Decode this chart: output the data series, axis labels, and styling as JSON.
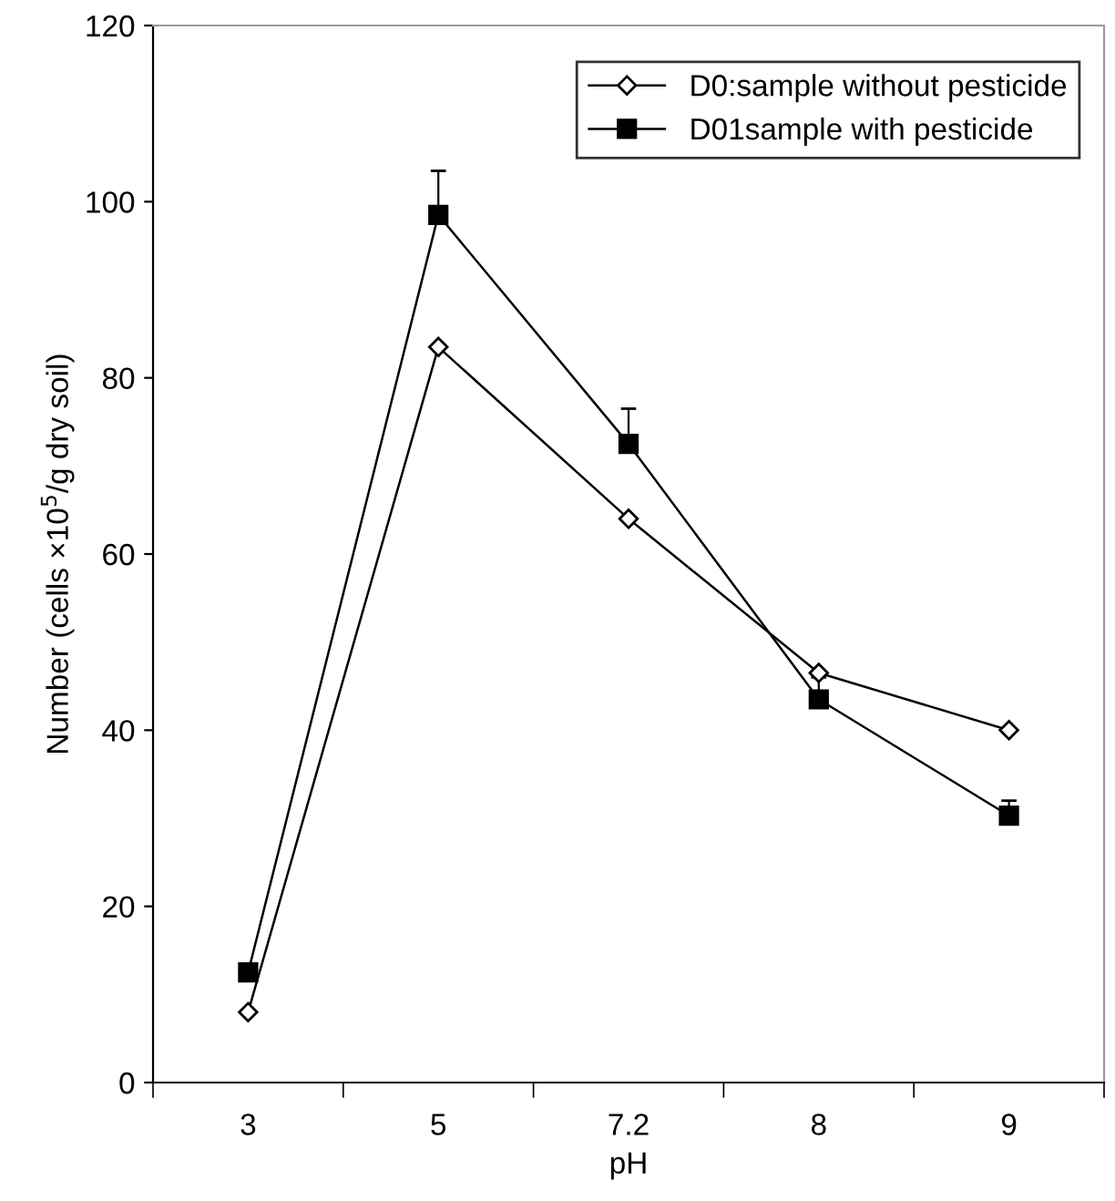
{
  "chart_data": {
    "type": "line",
    "xlabel": "pH",
    "ylabel": "Number (cells ×10$^{5}$/g dry soil)",
    "categories": [
      "3",
      "5",
      "7.2",
      "8",
      "9"
    ],
    "series": [
      {
        "name": "D0:sample without pesticide",
        "color": "#000000",
        "marker": "diamond",
        "values": [
          8,
          83.5,
          64,
          46.5,
          40
        ]
      },
      {
        "name": "D01sample with pesticide",
        "color": "#000000",
        "marker": "square",
        "values": [
          12.5,
          98.5,
          72.5,
          43.5,
          30.3
        ],
        "errors": [
          null,
          [
            98.5,
            103.5
          ],
          [
            72.5,
            76.5
          ],
          [
            43.5,
            46
          ],
          [
            30.3,
            32
          ]
        ]
      }
    ],
    "ylim": [
      0,
      120
    ],
    "yticks": [
      0,
      20,
      40,
      60,
      80,
      100,
      120
    ],
    "grid": false,
    "legend": "top right",
    "line_style": "solid"
  }
}
